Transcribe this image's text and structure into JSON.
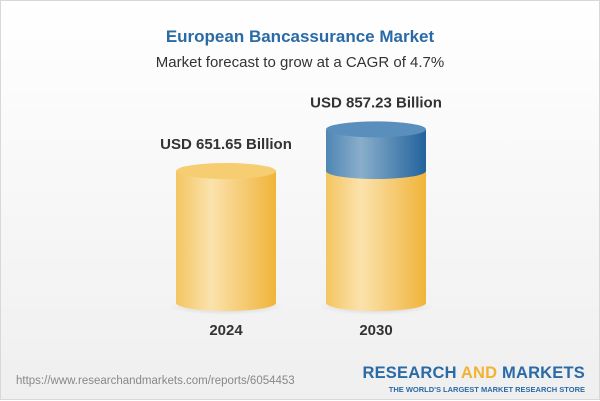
{
  "title": "European Bancassurance Market",
  "subtitle": "Market forecast to grow at a CAGR of 4.7%",
  "chart_data": {
    "type": "bar",
    "categories": [
      "2024",
      "2030"
    ],
    "values": [
      651.65,
      857.23
    ],
    "data_labels": [
      "USD 651.65 Billion",
      "USD 857.23 Billion"
    ],
    "unit": "USD Billion",
    "colors": {
      "base": "#f5c45a",
      "growth": "#3d78ad"
    }
  },
  "footer": {
    "url": "https://www.researchandmarkets.com/reports/6054453",
    "logo_part1": "RESEARCH ",
    "logo_part2": "AND",
    "logo_part3": " MARKETS",
    "tagline": "THE WORLD'S LARGEST MARKET RESEARCH STORE"
  }
}
